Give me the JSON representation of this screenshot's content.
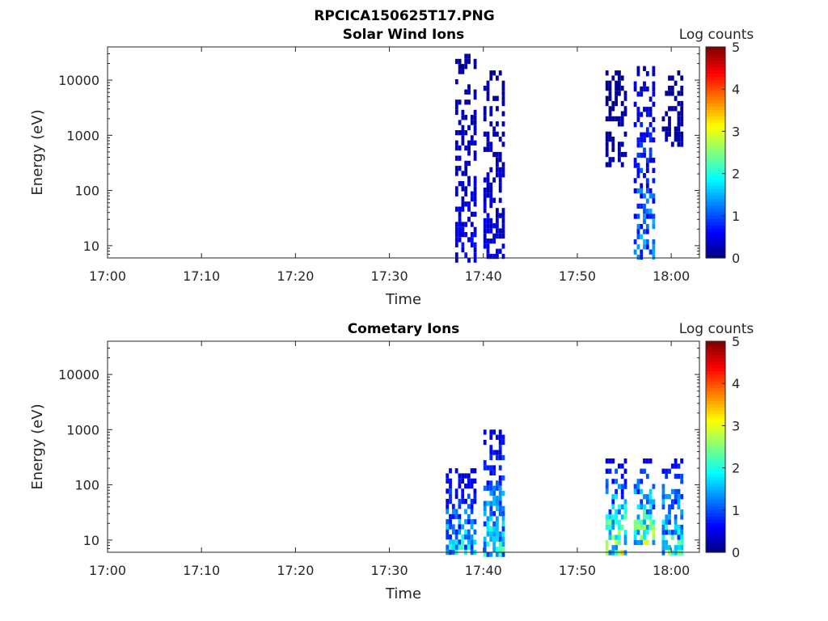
{
  "figure_title": "RPCICA150625T17.PNG",
  "chart_data": [
    {
      "type": "heatmap",
      "title": "Solar Wind Ions",
      "xlabel": "Time",
      "ylabel": "Energy (eV)",
      "colorbar_label": "Log counts",
      "x_tick_labels": [
        "17:00",
        "17:10",
        "17:20",
        "17:30",
        "17:40",
        "17:50",
        "18:00"
      ],
      "xlim_minutes": [
        0,
        63
      ],
      "y_tick_labels": [
        "10",
        "100",
        "1000",
        "10000"
      ],
      "y_scale": "log",
      "ylim": [
        6,
        40000
      ],
      "colorbar_ticks": [
        "0",
        "1",
        "2",
        "3",
        "4",
        "5"
      ],
      "clim": [
        0,
        5
      ],
      "colormap": "jet",
      "burst_intervals": [
        {
          "start": "17:37",
          "end": "17:39",
          "emin": 6,
          "emax": 30000,
          "peak_log_counts": 0.8
        },
        {
          "start": "17:40",
          "end": "17:42",
          "emin": 6,
          "emax": 15000,
          "peak_log_counts": 0.7
        },
        {
          "start": "17:53",
          "end": "17:55",
          "emin": 300,
          "emax": 15000,
          "peak_log_counts": 0.3
        },
        {
          "start": "17:56",
          "end": "17:58",
          "emin": 6,
          "emax": 18000,
          "peak_log_counts": 1.8
        },
        {
          "start": "17:59",
          "end": "18:01",
          "emin": 700,
          "emax": 15000,
          "peak_log_counts": 0.3
        }
      ]
    },
    {
      "type": "heatmap",
      "title": "Cometary Ions",
      "xlabel": "Time",
      "ylabel": "Energy (eV)",
      "colorbar_label": "Log counts",
      "x_tick_labels": [
        "17:00",
        "17:10",
        "17:20",
        "17:30",
        "17:40",
        "17:50",
        "18:00"
      ],
      "xlim_minutes": [
        0,
        63
      ],
      "y_tick_labels": [
        "10",
        "100",
        "1000",
        "10000"
      ],
      "y_scale": "log",
      "ylim": [
        6,
        40000
      ],
      "colorbar_ticks": [
        "0",
        "1",
        "2",
        "3",
        "4",
        "5"
      ],
      "clim": [
        0,
        5
      ],
      "colormap": "jet",
      "burst_intervals": [
        {
          "start": "17:36",
          "end": "17:39",
          "emin": 6,
          "emax": 200,
          "peak_log_counts": 2.4
        },
        {
          "start": "17:40",
          "end": "17:42",
          "emin": 6,
          "emax": 1000,
          "peak_log_counts": 2.5
        },
        {
          "start": "17:53",
          "end": "17:55",
          "emin": 6,
          "emax": 300,
          "peak_log_counts": 3.5
        },
        {
          "start": "17:56",
          "end": "17:58",
          "emin": 10,
          "emax": 300,
          "peak_log_counts": 3.2
        },
        {
          "start": "17:59",
          "end": "18:01",
          "emin": 6,
          "emax": 300,
          "peak_log_counts": 2.8
        }
      ]
    }
  ]
}
